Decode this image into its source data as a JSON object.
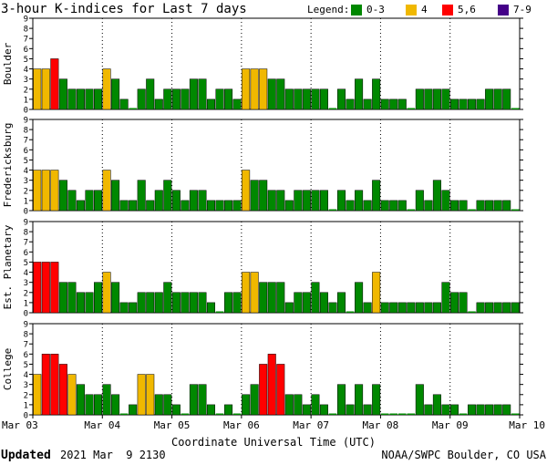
{
  "chart_data": {
    "type": "bar",
    "title": "3-hour K-indices for Last 7 days",
    "legend": {
      "label": "Legend:",
      "items": [
        {
          "label": "0-3",
          "color": "#008800"
        },
        {
          "label": "4",
          "color": "#f0b800"
        },
        {
          "label": "5,6",
          "color": "#ff0000"
        },
        {
          "label": "7-9",
          "color": "#440088"
        }
      ]
    },
    "xlabel": "Coordinate Universal Time (UTC)",
    "x_ticks": [
      "Mar 03",
      "Mar 04",
      "Mar 05",
      "Mar 06",
      "Mar 07",
      "Mar 08",
      "Mar 09",
      "Mar 10"
    ],
    "ylim": [
      0,
      9
    ],
    "y_ticks": [
      "0",
      "1",
      "2",
      "3",
      "4",
      "5",
      "6",
      "7",
      "8",
      "9"
    ],
    "intervals_per_day": 8,
    "series": [
      {
        "name": "Boulder",
        "values": [
          4,
          4,
          5,
          3,
          2,
          2,
          2,
          2,
          4,
          3,
          1,
          0,
          2,
          3,
          1,
          2,
          2,
          2,
          3,
          3,
          1,
          2,
          2,
          1,
          4,
          4,
          4,
          3,
          3,
          2,
          2,
          2,
          2,
          2,
          0,
          2,
          1,
          3,
          1,
          3,
          1,
          1,
          1,
          0,
          2,
          2,
          2,
          2,
          1,
          1,
          1,
          1,
          2,
          2,
          2,
          0
        ]
      },
      {
        "name": "Fredericksburg",
        "values": [
          4,
          4,
          4,
          3,
          2,
          1,
          2,
          2,
          4,
          3,
          1,
          1,
          3,
          1,
          2,
          3,
          2,
          1,
          2,
          2,
          1,
          1,
          1,
          1,
          4,
          3,
          3,
          2,
          2,
          1,
          2,
          2,
          2,
          2,
          0,
          2,
          1,
          2,
          1,
          3,
          1,
          1,
          1,
          0,
          2,
          1,
          3,
          2,
          1,
          1,
          0,
          1,
          1,
          1,
          1,
          0
        ]
      },
      {
        "name": "Est. Planetary",
        "values": [
          5,
          5,
          5,
          3,
          3,
          2,
          2,
          3,
          4,
          3,
          1,
          1,
          2,
          2,
          2,
          3,
          2,
          2,
          2,
          2,
          1,
          0,
          2,
          2,
          4,
          4,
          3,
          3,
          3,
          1,
          2,
          2,
          3,
          2,
          1,
          2,
          0,
          3,
          1,
          4,
          1,
          1,
          1,
          1,
          1,
          1,
          1,
          3,
          2,
          2,
          0,
          1,
          1,
          1,
          1,
          1
        ]
      },
      {
        "name": "College",
        "values": [
          4,
          6,
          6,
          5,
          4,
          3,
          2,
          2,
          3,
          2,
          0,
          1,
          4,
          4,
          2,
          2,
          1,
          0,
          3,
          3,
          1,
          0,
          1,
          0,
          2,
          3,
          5,
          6,
          5,
          2,
          2,
          1,
          2,
          1,
          0,
          3,
          1,
          3,
          1,
          3,
          0,
          0,
          0,
          0,
          3,
          1,
          2,
          1,
          1,
          0,
          1,
          1,
          1,
          1,
          1,
          0
        ]
      }
    ]
  },
  "footer": {
    "updated_label": "Updated",
    "updated_value": "2021 Mar  9 2130",
    "credit": "NOAA/SWPC Boulder, CO USA"
  }
}
